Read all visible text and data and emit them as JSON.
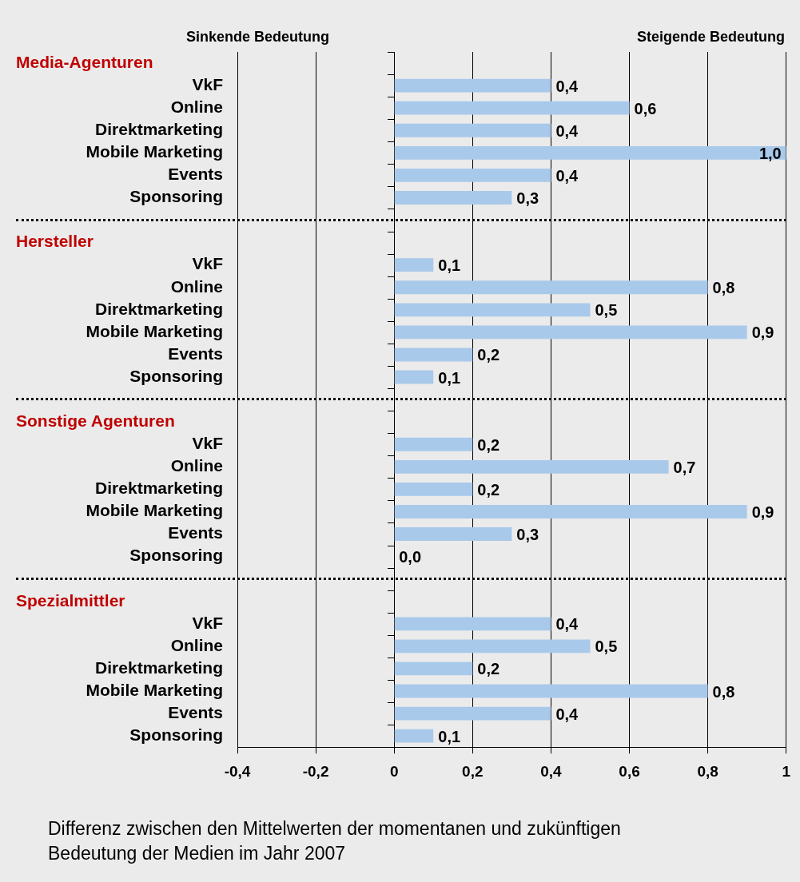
{
  "chart_data": {
    "type": "bar",
    "orientation": "horizontal",
    "categories": [
      null,
      "VkF",
      "Online",
      "Direktmarketing",
      "Mobile Marketing",
      "Events",
      "Sponsoring",
      null,
      null,
      "VkF",
      "Online",
      "Direktmarketing",
      "Mobile Marketing",
      "Events",
      "Sponsoring",
      null,
      null,
      "VkF",
      "Online",
      "Direktmarketing",
      "Mobile Marketing",
      "Events",
      "Sponsoring",
      null,
      null,
      "VkF",
      "Online",
      "Direktmarketing",
      "Mobile Marketing",
      "Events",
      "Sponsoring"
    ],
    "values": [
      null,
      0.4,
      0.6,
      0.4,
      1.0,
      0.4,
      0.3,
      null,
      null,
      0.1,
      0.8,
      0.5,
      0.9,
      0.2,
      0.1,
      null,
      null,
      0.2,
      0.7,
      0.2,
      0.9,
      0.3,
      0.0,
      null,
      null,
      0.4,
      0.5,
      0.2,
      0.8,
      0.4,
      0.1
    ],
    "value_labels": [
      null,
      "0,4",
      "0,6",
      "0,4",
      "1,0",
      "0,4",
      "0,3",
      null,
      null,
      "0,1",
      "0,8",
      "0,5",
      "0,9",
      "0,2",
      "0,1",
      null,
      null,
      "0,2",
      "0,7",
      "0,2",
      "0,9",
      "0,3",
      "0,0",
      null,
      null,
      "0,4",
      "0,5",
      "0,2",
      "0,8",
      "0,4",
      "0,1"
    ],
    "color": "#a9c9ea",
    "xlim": [
      -0.4,
      1
    ],
    "xticks": [
      {
        "value": -0.4,
        "label": "-0,4"
      },
      {
        "value": -0.2,
        "label": "-0,2"
      },
      0,
      {
        "value": 0.2,
        "label": "0,2"
      },
      {
        "value": 0.4,
        "label": "0,4"
      },
      {
        "value": 0.6,
        "label": "0,6"
      },
      {
        "value": 0.8,
        "label": "0,8"
      },
      1
    ],
    "grid": "x",
    "legend": false,
    "annotations": [
      "Sinkende Bedeutung",
      "Steigende Bedeutung",
      "Differenz zwischen den Mittelwerten der momentanen und zukünftigen Bedeutung der Medien im Jahr 2007",
      "Media-Agenturen",
      "Hersteller",
      "Sonstige Agenturen",
      "Spezialmittler"
    ]
  }
}
